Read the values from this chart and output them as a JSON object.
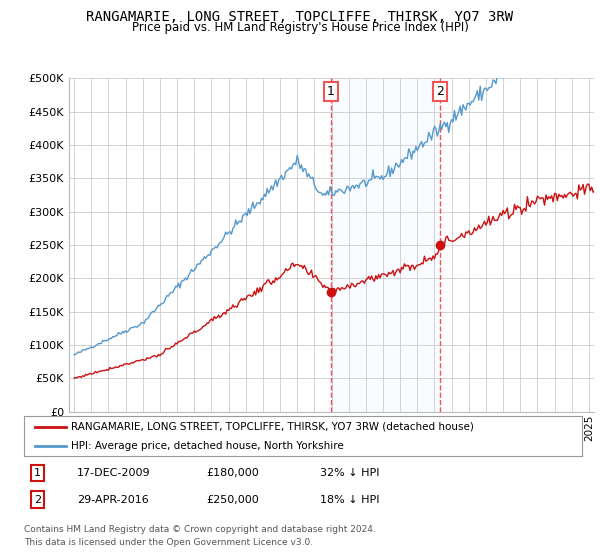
{
  "title": "RANGAMARIE, LONG STREET, TOPCLIFFE, THIRSK, YO7 3RW",
  "subtitle": "Price paid vs. HM Land Registry's House Price Index (HPI)",
  "ylabel_vals": [
    0,
    50000,
    100000,
    150000,
    200000,
    250000,
    300000,
    350000,
    400000,
    450000,
    500000
  ],
  "ylabel_labels": [
    "£0",
    "£50K",
    "£100K",
    "£150K",
    "£200K",
    "£250K",
    "£300K",
    "£350K",
    "£400K",
    "£450K",
    "£500K"
  ],
  "ylim": [
    0,
    500000
  ],
  "xlim_start": 1994.7,
  "xlim_end": 2025.3,
  "hpi_color": "#5599cc",
  "price_color": "#cc1111",
  "vline_color": "#ee5555",
  "shade_color": "#ddeeff",
  "transaction1_x": 2009.96,
  "transaction1_y": 180000,
  "transaction2_x": 2016.33,
  "transaction2_y": 250000,
  "legend_label1": "RANGAMARIE, LONG STREET, TOPCLIFFE, THIRSK, YO7 3RW (detached house)",
  "legend_label2": "HPI: Average price, detached house, North Yorkshire",
  "note1_label": "1",
  "note1_date": "17-DEC-2009",
  "note1_price": "£180,000",
  "note1_hpi": "32% ↓ HPI",
  "note2_label": "2",
  "note2_date": "29-APR-2016",
  "note2_price": "£250,000",
  "note2_hpi": "18% ↓ HPI",
  "footer": "Contains HM Land Registry data © Crown copyright and database right 2024.\nThis data is licensed under the Open Government Licence v3.0.",
  "background_color": "#ffffff"
}
